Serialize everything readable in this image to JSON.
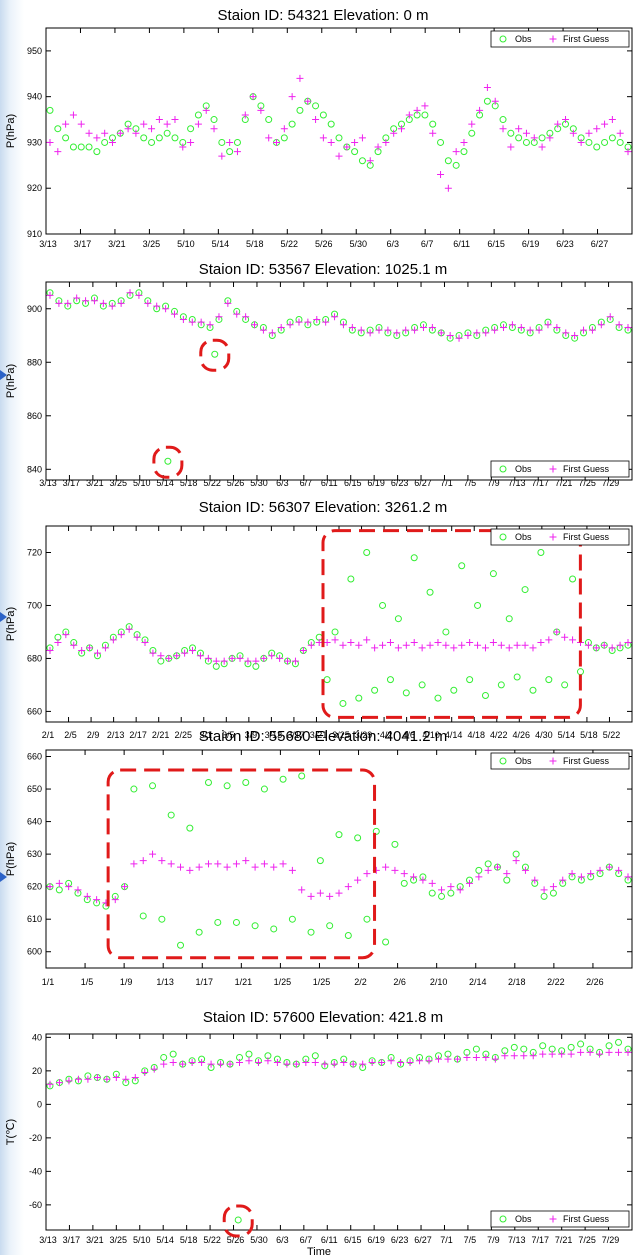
{
  "colors": {
    "obs": "#33ee33",
    "first_guess": "#ee22ee",
    "highlight": "#e01a1a"
  },
  "chart_data": [
    {
      "type": "scatter",
      "title": "Staion ID: 54321 Elevation: 0 m",
      "ylabel": "P(hPa)",
      "xlabel": "",
      "ylim": [
        910,
        955
      ],
      "yticks": [
        "910",
        "920",
        "930",
        "940",
        "950"
      ],
      "xticks": [
        "3/13",
        "3/17",
        "3/21",
        "3/25",
        "5/10",
        "5/14",
        "5/18",
        "5/22",
        "5/26",
        "5/30",
        "6/3",
        "6/7",
        "6/11",
        "6/15",
        "6/19",
        "6/23",
        "6/27"
      ],
      "legend": {
        "position": "top-right",
        "entries": [
          "Obs",
          "First Guess"
        ]
      },
      "series": [
        {
          "name": "Obs",
          "marker": "circle",
          "values": [
            937,
            933,
            931,
            929,
            929,
            929,
            928,
            930,
            931,
            932,
            934,
            933,
            931,
            930,
            931,
            932,
            931,
            930,
            933,
            936,
            938,
            935,
            930,
            928,
            930,
            935,
            940,
            938,
            935,
            930,
            931,
            934,
            937,
            939,
            938,
            936,
            934,
            931,
            929,
            928,
            926,
            925,
            928,
            931,
            933,
            934,
            935,
            936,
            936,
            934,
            930,
            926,
            925,
            928,
            932,
            936,
            939,
            938,
            935,
            932,
            931,
            930,
            930,
            931,
            932,
            933,
            934,
            933,
            931,
            930,
            929,
            930,
            931,
            930,
            929
          ]
        },
        {
          "name": "First Guess",
          "marker": "plus",
          "values": [
            930,
            928,
            934,
            936,
            934,
            932,
            931,
            932,
            930,
            932,
            933,
            932,
            934,
            933,
            935,
            934,
            935,
            929,
            930,
            934,
            937,
            933,
            927,
            930,
            928,
            936,
            940,
            937,
            931,
            930,
            933,
            940,
            944,
            939,
            935,
            931,
            930,
            927,
            929,
            930,
            931,
            926,
            929,
            930,
            932,
            933,
            936,
            937,
            938,
            932,
            923,
            920,
            928,
            930,
            934,
            937,
            942,
            939,
            933,
            929,
            933,
            932,
            931,
            929,
            931,
            934,
            935,
            932,
            930,
            932,
            933,
            934,
            935,
            932,
            928
          ]
        }
      ],
      "highlights": []
    },
    {
      "type": "scatter",
      "title": "Staion ID: 53567 Elevation: 1025.1 m",
      "ylabel": "P(hPa)",
      "xlabel": "",
      "ylim": [
        836,
        910
      ],
      "yticks": [
        "840",
        "860",
        "880",
        "900"
      ],
      "xticks": [
        "3/13",
        "3/17",
        "3/21",
        "3/25",
        "5/10",
        "5/14",
        "5/18",
        "5/22",
        "5/26",
        "5/30",
        "6/3",
        "6/7",
        "6/11",
        "6/15",
        "6/19",
        "6/23",
        "6/27",
        "7/1",
        "7/5",
        "7/9",
        "7/13",
        "7/17",
        "7/21",
        "7/25",
        "7/29"
      ],
      "legend": {
        "position": "bottom-right",
        "entries": [
          "Obs",
          "First Guess"
        ]
      },
      "series": [
        {
          "name": "Obs",
          "marker": "circle",
          "values": [
            906,
            903,
            901,
            903,
            902,
            904,
            901,
            902,
            903,
            905,
            906,
            903,
            900,
            901,
            899,
            897,
            896,
            894,
            893,
            896,
            903,
            899,
            896,
            894,
            893,
            890,
            892,
            895,
            896,
            894,
            895,
            896,
            898,
            895,
            892,
            891,
            892,
            893,
            891,
            890,
            891,
            893,
            894,
            892,
            891,
            889,
            890,
            891,
            890,
            892,
            893,
            894,
            893,
            892,
            891,
            893,
            895,
            892,
            890,
            889,
            891,
            893,
            895,
            896,
            893,
            892
          ]
        },
        {
          "name": "First Guess",
          "marker": "plus",
          "values": [
            905,
            902,
            902,
            904,
            903,
            903,
            902,
            901,
            902,
            906,
            905,
            902,
            901,
            900,
            898,
            896,
            895,
            895,
            894,
            897,
            902,
            898,
            897,
            894,
            892,
            891,
            893,
            894,
            895,
            895,
            896,
            895,
            897,
            894,
            893,
            892,
            891,
            892,
            892,
            891,
            892,
            892,
            893,
            893,
            891,
            890,
            889,
            890,
            891,
            891,
            892,
            893,
            894,
            893,
            892,
            892,
            894,
            893,
            891,
            890,
            892,
            892,
            894,
            897,
            894,
            893
          ]
        }
      ],
      "outliers": [
        {
          "date": "5/14",
          "value": 843
        },
        {
          "date": "5/22",
          "value": 883
        }
      ],
      "highlights": [
        {
          "around": "5/14",
          "value": 843
        },
        {
          "around": "5/22",
          "value": 883
        }
      ]
    },
    {
      "type": "scatter",
      "title": "Staion ID: 56307 Elevation: 3261.2 m",
      "ylabel": "P(hPa)",
      "xlabel": "",
      "ylim": [
        656,
        730
      ],
      "yticks": [
        "660",
        "680",
        "700",
        "720"
      ],
      "xticks": [
        "2/1",
        "2/5",
        "2/9",
        "2/13",
        "2/17",
        "2/21",
        "2/25",
        "3/1",
        "3/5",
        "3/9",
        "3/13",
        "3/17",
        "3/21",
        "3/25",
        "3/29",
        "4/2",
        "4/6",
        "4/10",
        "4/14",
        "4/18",
        "4/22",
        "4/26",
        "4/30",
        "5/14",
        "5/18",
        "5/22"
      ],
      "legend": {
        "position": "top-right",
        "entries": [
          "Obs",
          "First Guess"
        ]
      },
      "series": [
        {
          "name": "Obs",
          "marker": "circle",
          "values": [
            684,
            688,
            690,
            686,
            682,
            684,
            681,
            685,
            688,
            690,
            692,
            689,
            687,
            683,
            679,
            680,
            681,
            683,
            684,
            682,
            679,
            677,
            678,
            680,
            681,
            678,
            677,
            680,
            682,
            681,
            679,
            678,
            683,
            686,
            688,
            672,
            690,
            663,
            710,
            665,
            720,
            668,
            700,
            672,
            695,
            667,
            718,
            670,
            705,
            665,
            690,
            668,
            715,
            672,
            700,
            666,
            712,
            670,
            695,
            673,
            706,
            668,
            720,
            672,
            690,
            670,
            710,
            675,
            686,
            684,
            685,
            683,
            684,
            685
          ]
        },
        {
          "name": "First Guess",
          "marker": "plus",
          "values": [
            683,
            686,
            689,
            685,
            683,
            684,
            682,
            684,
            687,
            689,
            691,
            688,
            686,
            682,
            681,
            680,
            681,
            682,
            683,
            681,
            680,
            679,
            679,
            680,
            680,
            679,
            679,
            680,
            681,
            680,
            679,
            679,
            683,
            685,
            686,
            686,
            687,
            685,
            686,
            685,
            687,
            684,
            685,
            686,
            684,
            685,
            686,
            684,
            685,
            686,
            685,
            684,
            685,
            686,
            685,
            684,
            686,
            685,
            684,
            685,
            685,
            684,
            686,
            687,
            690,
            688,
            687,
            686,
            685,
            684,
            685,
            684,
            685,
            686
          ]
        }
      ],
      "highlights": [
        {
          "from": "3/25",
          "to": "5/14",
          "value_range": [
            660,
            726
          ]
        }
      ]
    },
    {
      "type": "scatter",
      "title": "Staion ID: 55680 Elevation: 4041.2 m",
      "ylabel": "P(hPa)",
      "xlabel": "",
      "ylim": [
        595,
        662
      ],
      "yticks": [
        "600",
        "610",
        "620",
        "630",
        "640",
        "650",
        "660"
      ],
      "xticks": [
        "1/1",
        "1/5",
        "1/9",
        "1/13",
        "1/17",
        "1/21",
        "1/25",
        "1/25",
        "2/2",
        "2/6",
        "2/10",
        "2/14",
        "2/18",
        "2/22",
        "2/26"
      ],
      "legend": {
        "position": "top-right",
        "entries": [
          "Obs",
          "First Guess"
        ]
      },
      "series": [
        {
          "name": "Obs",
          "marker": "circle",
          "values": [
            620,
            619,
            621,
            618,
            616,
            615,
            614,
            617,
            620,
            650,
            611,
            651,
            610,
            642,
            602,
            638,
            606,
            652,
            609,
            651,
            609,
            652,
            608,
            650,
            607,
            653,
            610,
            654,
            606,
            628,
            608,
            636,
            605,
            635,
            610,
            637,
            603,
            633,
            621,
            622,
            623,
            618,
            617,
            618,
            620,
            622,
            625,
            627,
            626,
            622,
            630,
            626,
            621,
            617,
            618,
            621,
            623,
            622,
            623,
            624,
            626,
            624,
            622
          ]
        },
        {
          "name": "First Guess",
          "marker": "plus",
          "values": [
            620,
            621,
            620,
            619,
            617,
            616,
            615,
            616,
            620,
            627,
            628,
            630,
            628,
            627,
            626,
            625,
            626,
            627,
            627,
            626,
            627,
            628,
            626,
            627,
            626,
            627,
            625,
            619,
            617,
            618,
            617,
            618,
            620,
            622,
            624,
            625,
            626,
            625,
            624,
            623,
            622,
            621,
            619,
            620,
            619,
            621,
            623,
            625,
            626,
            624,
            628,
            625,
            622,
            619,
            620,
            622,
            624,
            623,
            624,
            625,
            626,
            625,
            623
          ]
        }
      ],
      "highlights": [
        {
          "from": "1/9",
          "to": "2/2",
          "value_range": [
            600,
            654
          ]
        }
      ]
    },
    {
      "type": "scatter",
      "title": "Staion ID: 57600 Elevation: 421.8 m",
      "ylabel": "T(℃)",
      "xlabel": "Time",
      "ylim": [
        -75,
        42
      ],
      "yticks": [
        "-60",
        "-40",
        "-20",
        "0",
        "20",
        "40"
      ],
      "xticks": [
        "3/13",
        "3/17",
        "3/21",
        "3/25",
        "5/10",
        "5/14",
        "5/18",
        "5/22",
        "5/26",
        "5/30",
        "6/3",
        "6/7",
        "6/11",
        "6/15",
        "6/19",
        "6/23",
        "6/27",
        "7/1",
        "7/5",
        "7/9",
        "7/13",
        "7/17",
        "7/21",
        "7/25",
        "7/29"
      ],
      "legend": {
        "position": "bottom-right",
        "entries": [
          "Obs",
          "First Guess"
        ]
      },
      "series": [
        {
          "name": "Obs",
          "marker": "circle",
          "values": [
            11,
            13,
            15,
            14,
            17,
            16,
            15,
            18,
            13,
            14,
            20,
            22,
            28,
            30,
            24,
            26,
            27,
            22,
            25,
            24,
            28,
            30,
            26,
            29,
            27,
            25,
            24,
            27,
            29,
            23,
            25,
            27,
            24,
            22,
            26,
            25,
            28,
            24,
            26,
            28,
            27,
            29,
            30,
            27,
            31,
            33,
            30,
            28,
            32,
            34,
            33,
            31,
            35,
            33,
            32,
            34,
            36,
            33,
            31,
            35,
            37,
            33
          ]
        },
        {
          "name": "First Guess",
          "marker": "plus",
          "values": [
            12,
            13,
            14,
            15,
            15,
            16,
            15,
            16,
            15,
            16,
            19,
            21,
            24,
            25,
            24,
            25,
            25,
            24,
            24,
            24,
            25,
            26,
            25,
            26,
            25,
            24,
            24,
            25,
            25,
            24,
            24,
            25,
            24,
            24,
            25,
            25,
            26,
            25,
            25,
            26,
            26,
            27,
            27,
            27,
            28,
            28,
            28,
            27,
            29,
            29,
            29,
            29,
            30,
            30,
            30,
            30,
            31,
            31,
            30,
            31,
            31,
            31
          ]
        }
      ],
      "outliers": [
        {
          "date": "5/26",
          "value": -69
        }
      ],
      "highlights": [
        {
          "around": "5/26",
          "value": -69
        }
      ]
    }
  ]
}
